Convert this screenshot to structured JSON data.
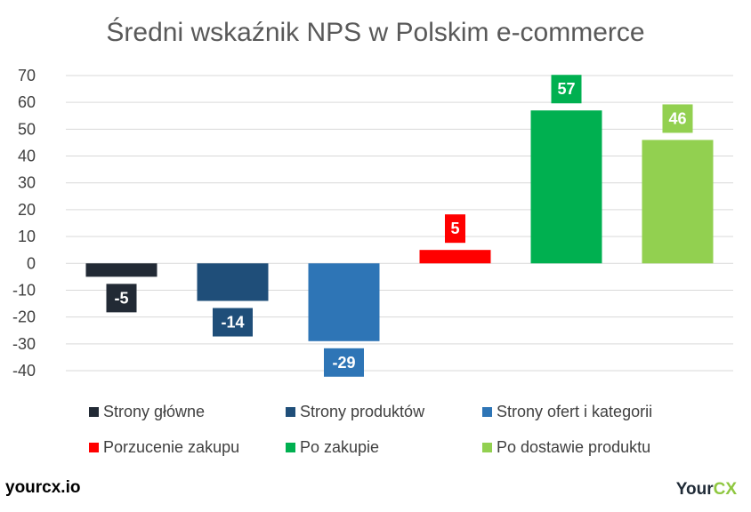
{
  "chart_data": {
    "type": "bar",
    "title": "Średni wskaźnik NPS w Polskim e-commerce",
    "categories": [
      "Strony główne",
      "Strony produktów",
      "Strony ofert i kategorii",
      "Porzucenie zakupu",
      "Po zakupie",
      "Po dostawie produktu"
    ],
    "values": [
      -5,
      -14,
      -29,
      5,
      57,
      46
    ],
    "colors": [
      "#222a35",
      "#1f4e79",
      "#2e75b6",
      "#ff0000",
      "#00b050",
      "#92d050"
    ],
    "yticks": [
      70,
      60,
      50,
      40,
      30,
      20,
      10,
      0,
      -10,
      -20,
      -30,
      -40
    ],
    "ylim": [
      -40,
      70
    ],
    "grid": true,
    "legend_position": "bottom"
  },
  "footer": {
    "site": "yourcx.io",
    "brand_part1": "Your",
    "brand_part2": "CX"
  }
}
